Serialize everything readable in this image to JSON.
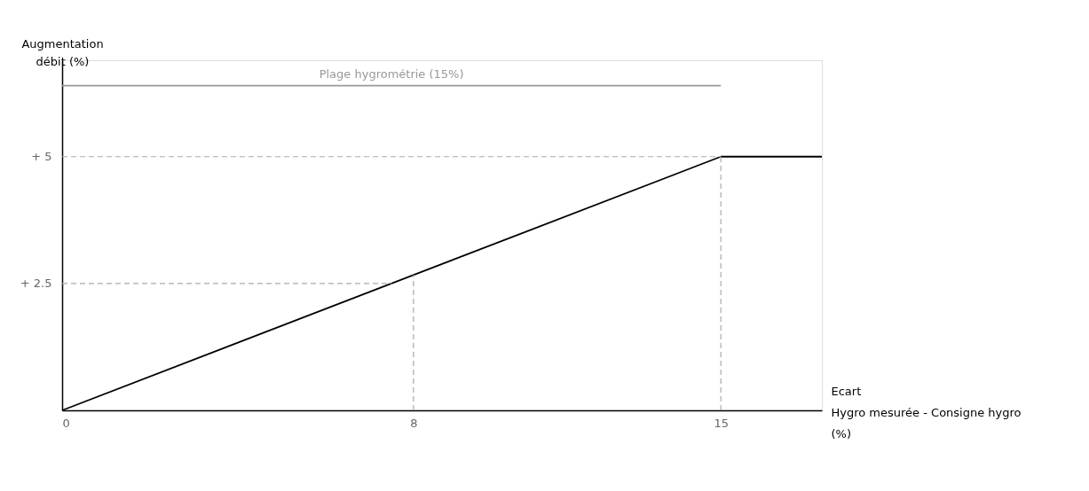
{
  "chart_data": {
    "type": "line",
    "xlabel": "Ecart\nHygro mesurée - Consigne hygro\n(%)",
    "ylabel": "Augmentation\ndébit (%)",
    "x": [
      0,
      15,
      17.3
    ],
    "series": [
      {
        "color": "#000000",
        "values": [
          0,
          5,
          5
        ]
      },
      {
        "color": "#999999",
        "x": [
          0,
          15
        ],
        "values": [
          6.4,
          6.4
        ]
      }
    ],
    "annotations": [
      {
        "text": "Plage hygrométrie (15%)",
        "x": 7.5,
        "y": 6.4
      }
    ],
    "xlim": [
      0,
      17.3
    ],
    "ylim": [
      0,
      6.9
    ],
    "xticks": [
      0,
      8,
      15
    ],
    "yticks": [
      {
        "value": 2.5,
        "label": "+ 2.5"
      },
      {
        "value": 5,
        "label": "+ 5"
      }
    ],
    "ref_lines": [
      {
        "axis": "y",
        "value": 5,
        "color": "#aaaaaa",
        "line_style": "dashed"
      },
      {
        "axis": "y",
        "value": 2.5,
        "color": "#aaaaaa",
        "line_style": "dashed"
      },
      {
        "axis": "x",
        "value": 8,
        "color": "#aaaaaa",
        "line_style": "dashed"
      },
      {
        "axis": "x",
        "value": 15,
        "color": "#aaaaaa",
        "line_style": "dashed"
      }
    ],
    "grid": false
  }
}
